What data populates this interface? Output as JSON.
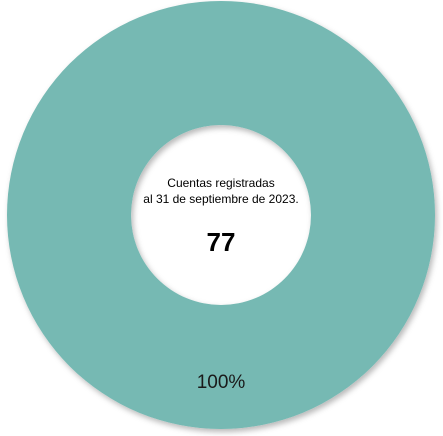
{
  "chart_data": {
    "type": "pie",
    "donut": true,
    "categories": [
      "Cuentas registradas"
    ],
    "values": [
      77
    ],
    "percent_labels": [
      "100%"
    ],
    "colors": [
      "#76b9b3"
    ],
    "center": {
      "line1": "Cuentas registradas",
      "line2": "al 31 de septiembre de 2023.",
      "value": "77"
    },
    "legend": "none"
  }
}
